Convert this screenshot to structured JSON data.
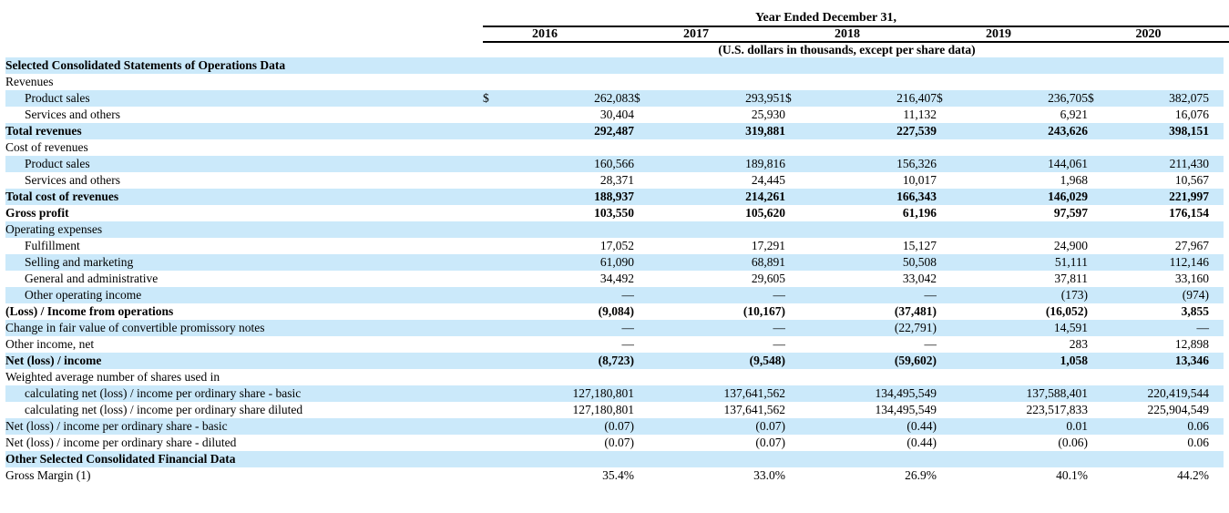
{
  "header": {
    "title": "Year Ended December 31,",
    "years": [
      "2016",
      "2017",
      "2018",
      "2019",
      "2020"
    ],
    "subtitle": "(U.S. dollars in thousands, except per share data)"
  },
  "colors": {
    "row_shade": "#cbe9fa",
    "rule": "#000000",
    "text": "#000000"
  },
  "table": {
    "currency_symbol": "$",
    "rows": [
      {
        "label": "Selected Consolidated Statements of Operations Data",
        "indent": false,
        "bold": true,
        "shaded": true,
        "currency": false,
        "values": [
          "",
          "",
          "",
          "",
          ""
        ]
      },
      {
        "label": "Revenues",
        "indent": false,
        "bold": false,
        "shaded": false,
        "currency": false,
        "values": [
          "",
          "",
          "",
          "",
          ""
        ]
      },
      {
        "label": "Product sales",
        "indent": true,
        "bold": false,
        "shaded": true,
        "currency": true,
        "values": [
          "262,083",
          "293,951",
          "216,407",
          "236,705",
          "382,075"
        ]
      },
      {
        "label": "Services and others",
        "indent": true,
        "bold": false,
        "shaded": false,
        "currency": false,
        "values": [
          "30,404",
          "25,930",
          "11,132",
          "6,921",
          "16,076"
        ]
      },
      {
        "label": "Total revenues",
        "indent": false,
        "bold": true,
        "shaded": true,
        "currency": false,
        "values": [
          "292,487",
          "319,881",
          "227,539",
          "243,626",
          "398,151"
        ]
      },
      {
        "label": "Cost of revenues",
        "indent": false,
        "bold": false,
        "shaded": false,
        "currency": false,
        "values": [
          "",
          "",
          "",
          "",
          ""
        ]
      },
      {
        "label": "Product sales",
        "indent": true,
        "bold": false,
        "shaded": true,
        "currency": false,
        "values": [
          "160,566",
          "189,816",
          "156,326",
          "144,061",
          "211,430"
        ]
      },
      {
        "label": "Services and others",
        "indent": true,
        "bold": false,
        "shaded": false,
        "currency": false,
        "values": [
          "28,371",
          "24,445",
          "10,017",
          "1,968",
          "10,567"
        ]
      },
      {
        "label": "Total cost of revenues",
        "indent": false,
        "bold": true,
        "shaded": true,
        "currency": false,
        "values": [
          "188,937",
          "214,261",
          "166,343",
          "146,029",
          "221,997"
        ]
      },
      {
        "label": "Gross profit",
        "indent": false,
        "bold": true,
        "shaded": false,
        "currency": false,
        "values": [
          "103,550",
          "105,620",
          "61,196",
          "97,597",
          "176,154"
        ]
      },
      {
        "label": "Operating expenses",
        "indent": false,
        "bold": false,
        "shaded": true,
        "currency": false,
        "values": [
          "",
          "",
          "",
          "",
          ""
        ]
      },
      {
        "label": "Fulfillment",
        "indent": true,
        "bold": false,
        "shaded": false,
        "currency": false,
        "values": [
          "17,052",
          "17,291",
          "15,127",
          "24,900",
          "27,967"
        ]
      },
      {
        "label": "Selling and marketing",
        "indent": true,
        "bold": false,
        "shaded": true,
        "currency": false,
        "values": [
          "61,090",
          "68,891",
          "50,508",
          "51,111",
          "112,146"
        ]
      },
      {
        "label": "General and administrative",
        "indent": true,
        "bold": false,
        "shaded": false,
        "currency": false,
        "values": [
          "34,492",
          "29,605",
          "33,042",
          "37,811",
          "33,160"
        ]
      },
      {
        "label": "Other operating income",
        "indent": true,
        "bold": false,
        "shaded": true,
        "currency": false,
        "values": [
          "—",
          "—",
          "—",
          "(173)",
          "(974)"
        ]
      },
      {
        "label": "(Loss) / Income from operations",
        "indent": false,
        "bold": true,
        "shaded": false,
        "currency": false,
        "values": [
          "(9,084)",
          "(10,167)",
          "(37,481)",
          "(16,052)",
          "3,855"
        ]
      },
      {
        "label": "Change in fair value of convertible promissory notes",
        "indent": false,
        "bold": false,
        "shaded": true,
        "currency": false,
        "values": [
          "—",
          "—",
          "(22,791)",
          "14,591",
          "—"
        ]
      },
      {
        "label": "Other income, net",
        "indent": false,
        "bold": false,
        "shaded": false,
        "currency": false,
        "values": [
          "—",
          "—",
          "—",
          "283",
          "12,898"
        ]
      },
      {
        "label": "Net (loss) / income",
        "indent": false,
        "bold": true,
        "shaded": true,
        "currency": false,
        "values": [
          "(8,723)",
          "(9,548)",
          "(59,602)",
          "1,058",
          "13,346"
        ]
      },
      {
        "label": "Weighted average number of shares used in",
        "indent": false,
        "bold": false,
        "shaded": false,
        "currency": false,
        "values": [
          "",
          "",
          "",
          "",
          ""
        ]
      },
      {
        "label": "calculating net (loss) / income per ordinary share - basic",
        "indent": true,
        "bold": false,
        "shaded": true,
        "currency": false,
        "values": [
          "127,180,801",
          "137,641,562",
          "134,495,549",
          "137,588,401",
          "220,419,544"
        ]
      },
      {
        "label": "calculating net (loss) / income per ordinary share diluted",
        "indent": true,
        "bold": false,
        "shaded": false,
        "currency": false,
        "values": [
          "127,180,801",
          "137,641,562",
          "134,495,549",
          "223,517,833",
          "225,904,549"
        ]
      },
      {
        "label": "Net (loss) / income per ordinary share - basic",
        "indent": false,
        "bold": false,
        "shaded": true,
        "currency": false,
        "values": [
          "(0.07)",
          "(0.07)",
          "(0.44)",
          "0.01",
          "0.06"
        ]
      },
      {
        "label": "Net (loss) / income per ordinary share - diluted",
        "indent": false,
        "bold": false,
        "shaded": false,
        "currency": false,
        "values": [
          "(0.07)",
          "(0.07)",
          "(0.44)",
          "(0.06)",
          "0.06"
        ]
      },
      {
        "label": "Other Selected Consolidated Financial Data",
        "indent": false,
        "bold": true,
        "shaded": true,
        "currency": false,
        "values": [
          "",
          "",
          "",
          "",
          ""
        ]
      },
      {
        "label": "Gross Margin (1)",
        "indent": false,
        "bold": false,
        "shaded": false,
        "currency": false,
        "values": [
          "35.4%",
          "33.0%",
          "26.9%",
          "40.1%",
          "44.2%"
        ]
      }
    ]
  }
}
